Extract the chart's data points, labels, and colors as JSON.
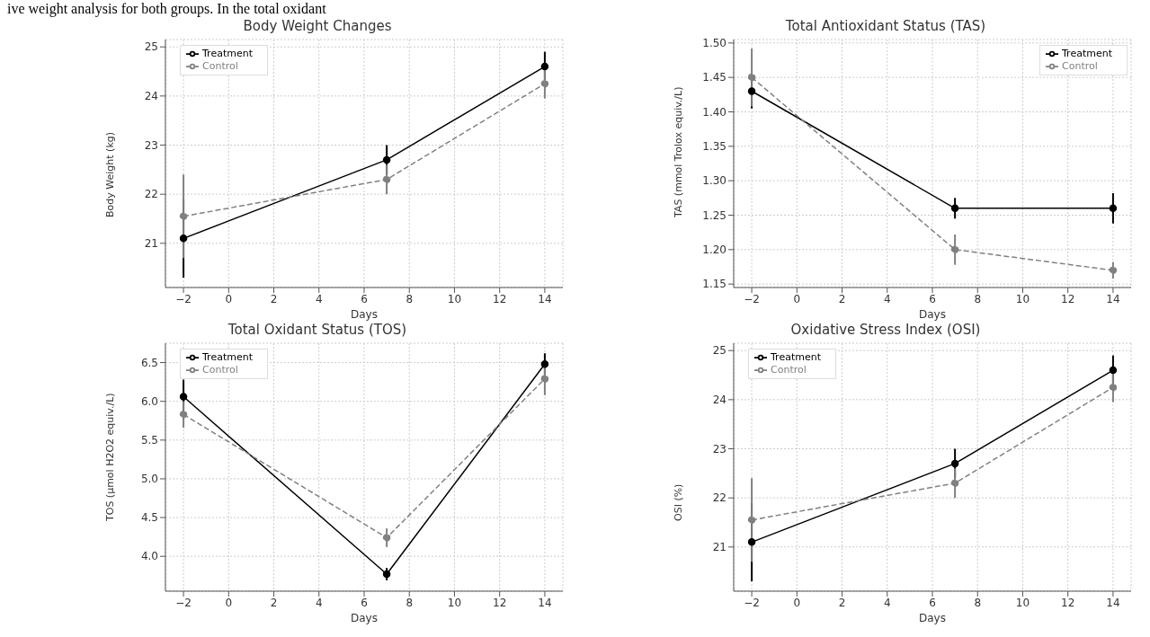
{
  "chart_data": [
    {
      "type": "line",
      "title": "Body Weight Changes",
      "xlabel": "Days",
      "ylabel": "Body Weight (kg)",
      "annotations": [
        "ive weight analysis for both groups. In the total oxidant"
      ],
      "x": [
        -2,
        7,
        14
      ],
      "xlim": [
        -2.8,
        14.8
      ],
      "xticks": [
        -2,
        0,
        2,
        4,
        6,
        8,
        10,
        12,
        14
      ],
      "ylim": [
        20.1,
        25.15
      ],
      "yticks": [
        21,
        22,
        23,
        24,
        25
      ],
      "grid": true,
      "legend": "top left",
      "marker": "circle",
      "series": [
        {
          "name": "Treatment",
          "color": "#000000",
          "values": [
            21.1,
            22.7,
            24.6
          ],
          "errors": [
            0.8,
            0.3,
            0.3
          ],
          "line_style": "solid"
        },
        {
          "name": "Control",
          "color": "#808080",
          "values": [
            21.55,
            22.3,
            24.25
          ],
          "errors": [
            0.85,
            0.3,
            0.3
          ],
          "line_style": "dashed"
        }
      ]
    },
    {
      "type": "line",
      "title": "Total Antioxidant Status (TAS)",
      "xlabel": "Days",
      "ylabel": "TAS (mmol Trolox equiv./L)",
      "x": [
        -2,
        7,
        14
      ],
      "xlim": [
        -2.8,
        14.8
      ],
      "xticks": [
        -2,
        0,
        2,
        4,
        6,
        8,
        10,
        12,
        14
      ],
      "ylim": [
        1.145,
        1.505
      ],
      "yticks": [
        {
          "value": 1.15,
          "label": "1.15"
        },
        {
          "value": 1.2,
          "label": "1.20"
        },
        {
          "value": 1.25,
          "label": "1.25"
        },
        {
          "value": 1.3,
          "label": "1.30"
        },
        {
          "value": 1.35,
          "label": "1.35"
        },
        {
          "value": 1.4,
          "label": "1.40"
        },
        {
          "value": 1.45,
          "label": "1.45"
        },
        {
          "value": 1.5,
          "label": "1.50"
        }
      ],
      "grid": true,
      "legend": "top right",
      "marker": "circle",
      "series": [
        {
          "name": "Treatment",
          "color": "#000000",
          "values": [
            1.43,
            1.26,
            1.26
          ],
          "errors": [
            0.025,
            0.015,
            0.022
          ],
          "line_style": "solid"
        },
        {
          "name": "Control",
          "color": "#808080",
          "values": [
            1.45,
            1.2,
            1.17
          ],
          "errors": [
            0.042,
            0.022,
            0.012
          ],
          "line_style": "dashed"
        }
      ]
    },
    {
      "type": "line",
      "title": "Total Oxidant Status (TOS)",
      "xlabel": "Days",
      "ylabel": "TOS (µmol H2O2 equiv./L)",
      "x": [
        -2,
        7,
        14
      ],
      "xlim": [
        -2.8,
        14.8
      ],
      "xticks": [
        -2,
        0,
        2,
        4,
        6,
        8,
        10,
        12,
        14
      ],
      "ylim": [
        3.55,
        6.75
      ],
      "yticks": [
        {
          "value": 4,
          "label": "4.0"
        },
        {
          "value": 4.5,
          "label": "4.5"
        },
        {
          "value": 5,
          "label": "5.0"
        },
        {
          "value": 5.5,
          "label": "5.5"
        },
        {
          "value": 6,
          "label": "6.0"
        },
        {
          "value": 6.5,
          "label": "6.5"
        }
      ],
      "grid": true,
      "legend": "top left",
      "marker": "circle",
      "series": [
        {
          "name": "Treatment",
          "color": "#000000",
          "values": [
            6.06,
            3.77,
            6.48
          ],
          "errors": [
            0.22,
            0.08,
            0.14
          ],
          "line_style": "solid"
        },
        {
          "name": "Control",
          "color": "#808080",
          "values": [
            5.83,
            4.24,
            6.29
          ],
          "errors": [
            0.17,
            0.12,
            0.21
          ],
          "line_style": "dashed"
        }
      ]
    },
    {
      "type": "line",
      "title": "Oxidative Stress Index (OSI)",
      "xlabel": "Days",
      "ylabel": "OSI (%)",
      "x": [
        -2,
        7,
        14
      ],
      "xlim": [
        -2.8,
        14.8
      ],
      "xticks": [
        -2,
        0,
        2,
        4,
        6,
        8,
        10,
        12,
        14
      ],
      "ylim": [
        20.1,
        25.15
      ],
      "yticks": [
        21,
        22,
        23,
        24,
        25
      ],
      "grid": true,
      "legend": "top left",
      "marker": "circle",
      "series": [
        {
          "name": "Treatment",
          "color": "#000000",
          "values": [
            21.1,
            22.7,
            24.6
          ],
          "errors": [
            0.8,
            0.3,
            0.3
          ],
          "line_style": "solid"
        },
        {
          "name": "Control",
          "color": "#808080",
          "values": [
            21.55,
            22.3,
            24.25
          ],
          "errors": [
            0.85,
            0.3,
            0.3
          ],
          "line_style": "dashed"
        }
      ]
    }
  ]
}
